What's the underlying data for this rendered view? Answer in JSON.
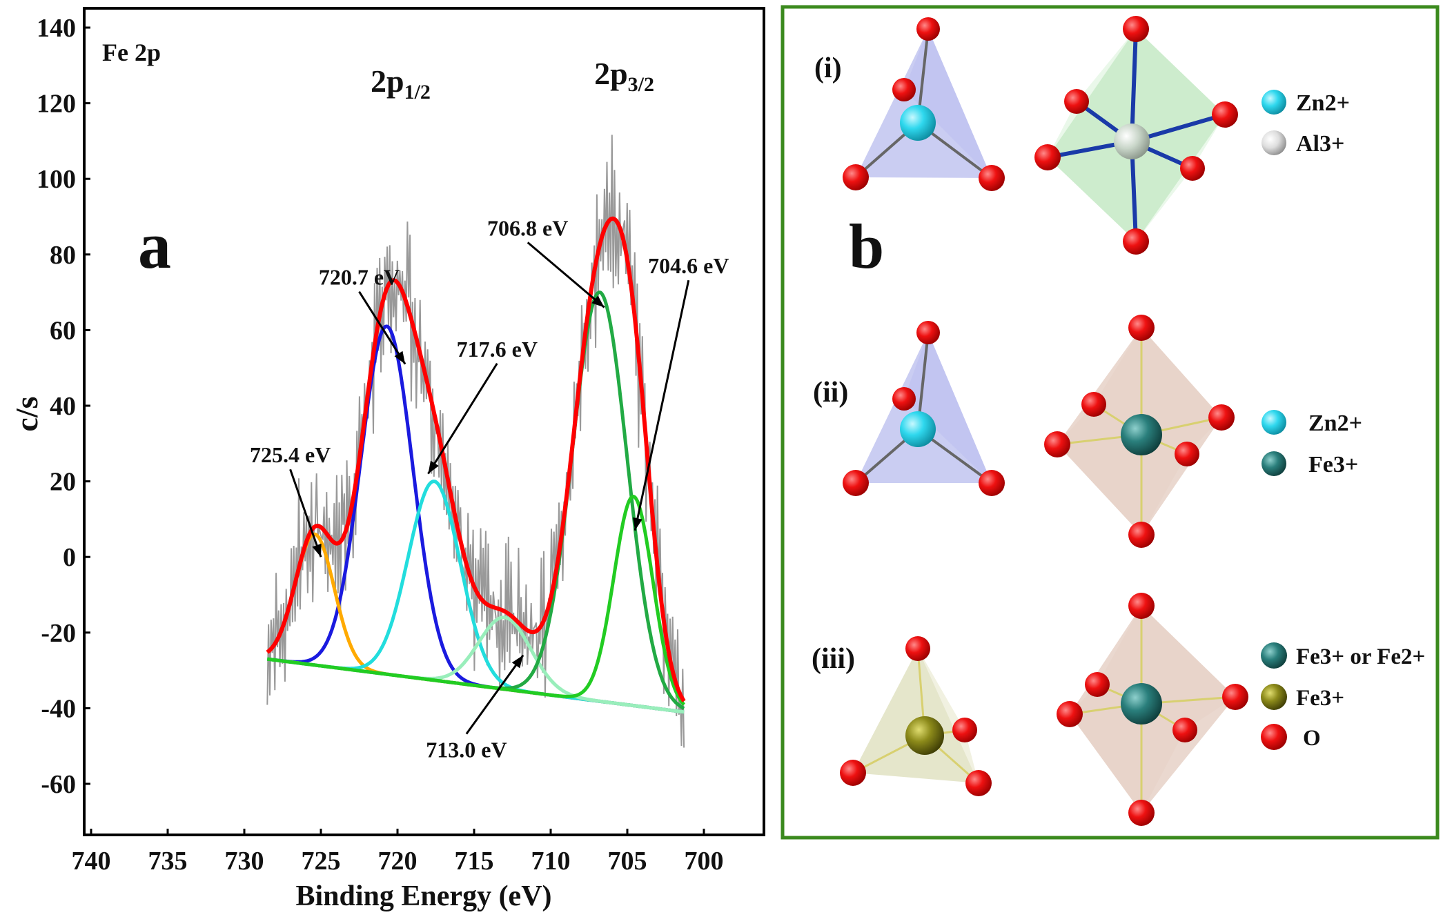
{
  "chart_data": {
    "type": "line",
    "panel_letter": "a",
    "spectrum_label": "Fe 2p",
    "xlabel": "Binding Energy (eV)",
    "ylabel": "c/s",
    "xlim": [
      740,
      697
    ],
    "ylim": [
      -75,
      145
    ],
    "x_reversed": true,
    "grid": false,
    "xticks": [
      740,
      735,
      730,
      725,
      720,
      715,
      710,
      705,
      700
    ],
    "yticks": [
      140,
      120,
      100,
      80,
      60,
      40,
      20,
      0,
      -20,
      -40,
      -60
    ],
    "peak_group_labels": [
      {
        "base": "2p",
        "sub": "1/2",
        "x": 719.8,
        "y": 123
      },
      {
        "base": "2p",
        "sub": "3/2",
        "x": 705.2,
        "y": 125
      }
    ],
    "annotations": [
      {
        "text": "725.4 eV",
        "text_x": 727.0,
        "text_y": 25,
        "tip_x": 725.0,
        "tip_y": 0
      },
      {
        "text": "720.7 eV",
        "text_x": 722.5,
        "text_y": 72,
        "tip_x": 719.5,
        "tip_y": 51
      },
      {
        "text": "717.6 eV",
        "text_x": 713.5,
        "text_y": 53,
        "tip_x": 718.0,
        "tip_y": 22
      },
      {
        "text": "713.0 eV",
        "text_x": 715.5,
        "text_y": -53,
        "tip_x": 711.8,
        "tip_y": -26
      },
      {
        "text": "706.8 eV",
        "text_x": 711.5,
        "text_y": 85,
        "tip_x": 706.5,
        "tip_y": 66
      },
      {
        "text": "704.6 eV",
        "text_x": 701.0,
        "text_y": 75,
        "tip_x": 704.5,
        "tip_y": 7
      }
    ],
    "series": [
      {
        "color": "#999999",
        "role": "raw",
        "x_range": [
          728.5,
          701.3
        ],
        "baseline": [
          -27,
          -41
        ]
      },
      {
        "color": "#ff0000",
        "role": "envelope",
        "x_range": [
          728.5,
          701.3
        ],
        "baseline": [
          -27,
          -41
        ]
      },
      {
        "color": "#1a1adf",
        "role": "component",
        "center": 720.7,
        "peak": 61,
        "fwhm": 4.0
      },
      {
        "color": "#ffaa00",
        "role": "component",
        "center": 725.4,
        "peak": 6,
        "fwhm": 3.0
      },
      {
        "color": "#22dddd",
        "role": "component",
        "center": 717.6,
        "peak": 20,
        "fwhm": 4.0
      },
      {
        "color": "#99eebb",
        "role": "component",
        "center": 713.0,
        "peak": -16,
        "fwhm": 4.0
      },
      {
        "color": "#22aa44",
        "role": "component",
        "center": 706.8,
        "peak": 70,
        "fwhm": 4.2
      },
      {
        "color": "#22cc22",
        "role": "component",
        "center": 704.6,
        "peak": 16,
        "fwhm": 3.0
      }
    ]
  },
  "panel_b": {
    "letter": "b",
    "frame_color": "#3b8a1e",
    "rows": [
      {
        "label": "(i)",
        "legend": [
          {
            "text": "Zn2+",
            "color": "#2fd8ee"
          },
          {
            "text": "Al3+",
            "color": "#dedede"
          }
        ]
      },
      {
        "label": "(ii)",
        "legend": [
          {
            "text": "Zn2+",
            "color": "#2fd8ee"
          },
          {
            "text": "Fe3+",
            "color": "#2a7f7c"
          }
        ]
      },
      {
        "label": "(iii)",
        "legend": [
          {
            "text": "Fe3+ or Fe2+",
            "color": "#2a7f7c"
          },
          {
            "text": "Fe3+",
            "color": "#8c8a1a"
          },
          {
            "text": "O",
            "color": "#ee1111"
          }
        ]
      }
    ]
  }
}
